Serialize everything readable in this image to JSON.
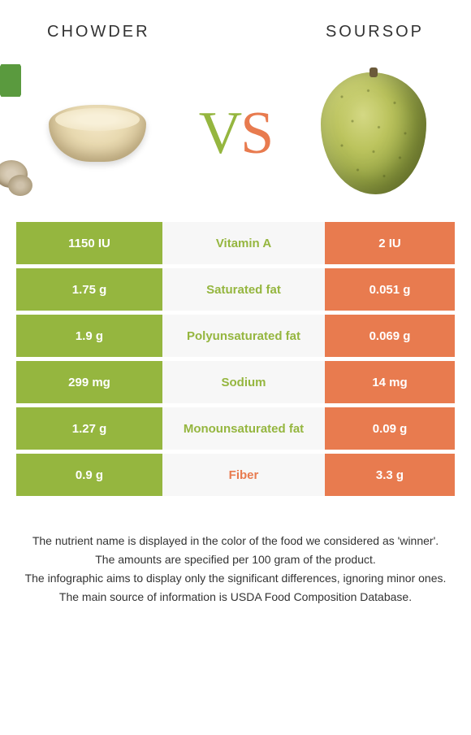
{
  "colors": {
    "green": "#95b63f",
    "orange": "#e87b4f",
    "mid_bg": "#f7f7f7",
    "text": "#333333",
    "white": "#ffffff"
  },
  "foods": {
    "left": {
      "name": "CHOWDER"
    },
    "right": {
      "name": "SOURSOP"
    }
  },
  "vs": {
    "v": "V",
    "s": "S"
  },
  "rows": [
    {
      "left": "1150 IU",
      "label": "Vitamin A",
      "right": "2 IU",
      "winner": "left"
    },
    {
      "left": "1.75 g",
      "label": "Saturated fat",
      "right": "0.051 g",
      "winner": "left"
    },
    {
      "left": "1.9 g",
      "label": "Polyunsaturated fat",
      "right": "0.069 g",
      "winner": "left"
    },
    {
      "left": "299 mg",
      "label": "Sodium",
      "right": "14 mg",
      "winner": "left"
    },
    {
      "left": "1.27 g",
      "label": "Monounsaturated fat",
      "right": "0.09 g",
      "winner": "left"
    },
    {
      "left": "0.9 g",
      "label": "Fiber",
      "right": "3.3 g",
      "winner": "right"
    }
  ],
  "footer": [
    "The nutrient name is displayed in the color of the food we considered as 'winner'.",
    "The amounts are specified per 100 gram of the product.",
    "The infographic aims to display only the significant differences, ignoring minor ones.",
    "The main source of information is USDA Food Composition Database."
  ]
}
